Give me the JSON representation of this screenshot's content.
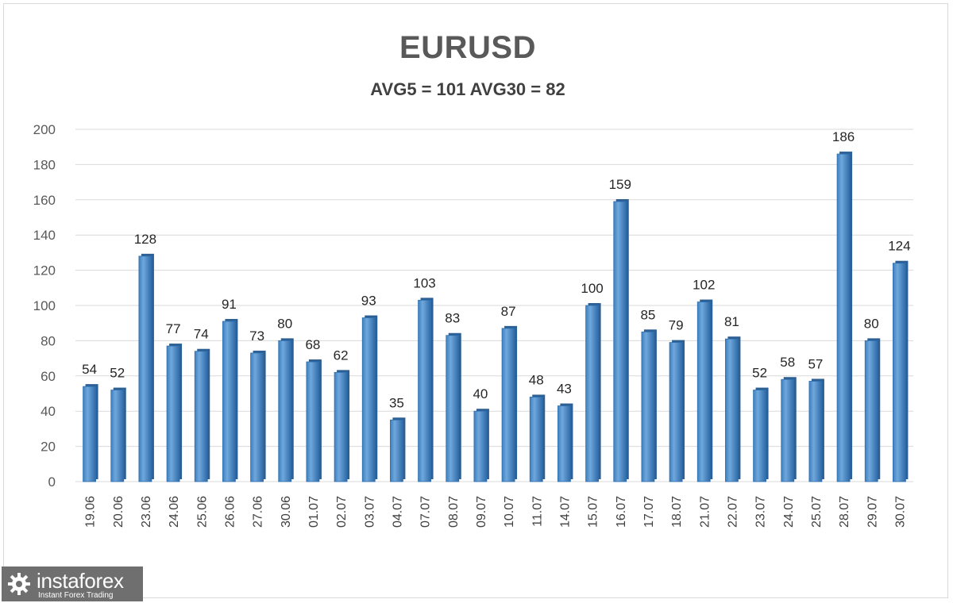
{
  "chart_data": {
    "type": "bar",
    "title": "EURUSD",
    "subtitle": "AVG5 = 101 AVG30 = 82",
    "categories": [
      "19.06",
      "20.06",
      "23.06",
      "24.06",
      "25.06",
      "26.06",
      "27.06",
      "30.06",
      "01.07",
      "02.07",
      "03.07",
      "04.07",
      "07.07",
      "08.07",
      "09.07",
      "10.07",
      "11.07",
      "14.07",
      "15.07",
      "16.07",
      "17.07",
      "18.07",
      "21.07",
      "22.07",
      "23.07",
      "24.07",
      "25.07",
      "28.07",
      "29.07",
      "30.07"
    ],
    "values": [
      54,
      52,
      128,
      77,
      74,
      91,
      73,
      80,
      68,
      62,
      93,
      35,
      103,
      83,
      40,
      87,
      48,
      43,
      100,
      159,
      85,
      79,
      102,
      81,
      52,
      58,
      57,
      186,
      80,
      124
    ],
    "ylim": [
      0,
      200
    ],
    "yticks": [
      0,
      20,
      40,
      60,
      80,
      100,
      120,
      140,
      160,
      180,
      200
    ],
    "grid": true,
    "bar_color": "#5b9bd5",
    "bar_color_dark": "#2e6fae",
    "xlabel": "",
    "ylabel": ""
  },
  "watermark": {
    "name": "instaforex",
    "tagline": "Instant Forex Trading"
  }
}
